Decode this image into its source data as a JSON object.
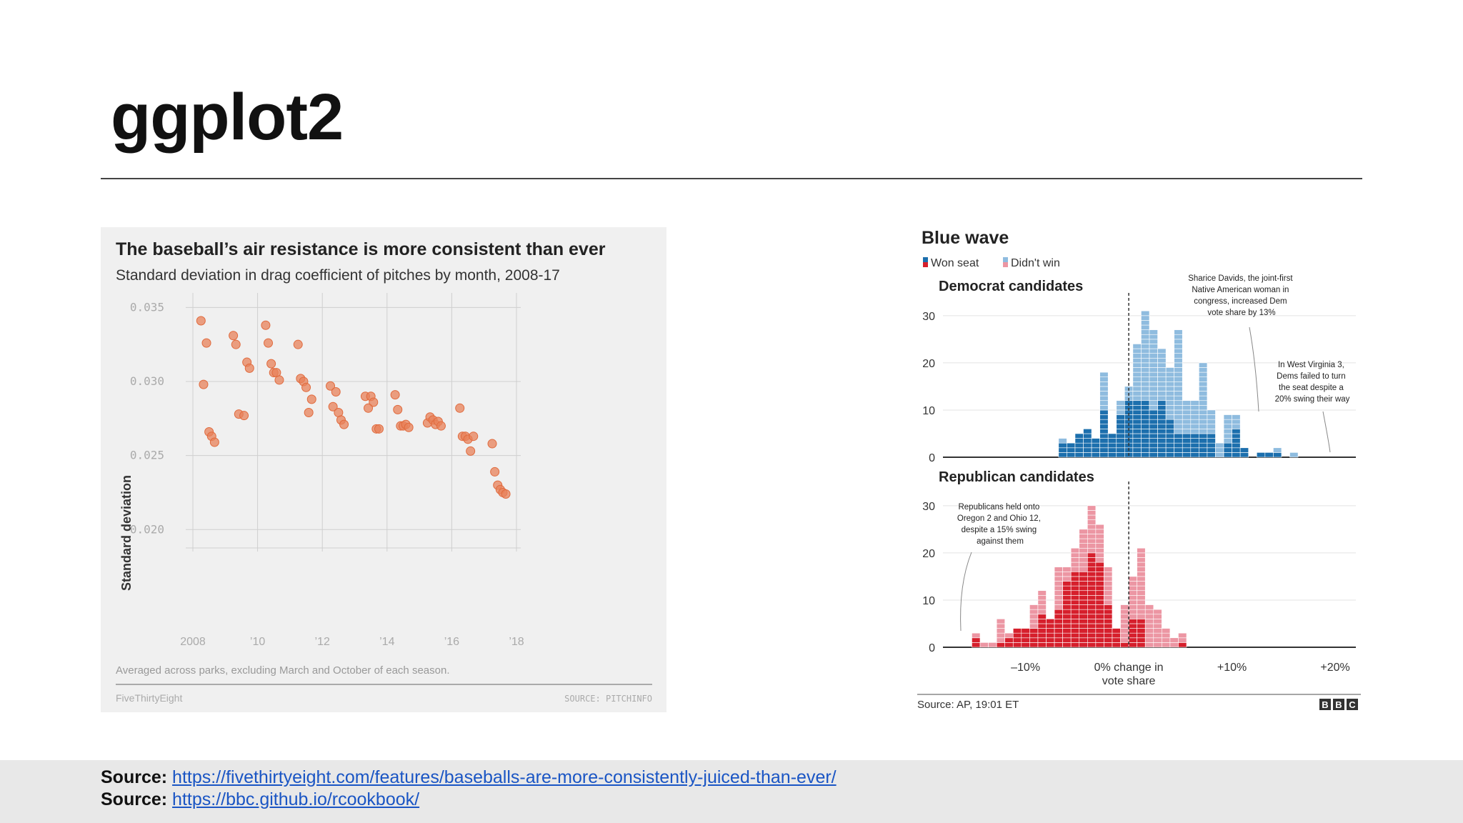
{
  "slide": {
    "title": "ggplot2"
  },
  "footer": {
    "sources": [
      {
        "label": "Source:",
        "url": "https://fivethirtyeight.com/features/baseballs-are-more-consistently-juiced-than-ever/"
      },
      {
        "label": "Source:",
        "url": "https://bbc.github.io/rcookbook/"
      }
    ]
  },
  "colors": {
    "scatter_point": "#e8825a",
    "dem_won": "#1c6fad",
    "dem_lost": "#8fbcdf",
    "rep_won": "#d61f2c",
    "rep_lost": "#ec96a3",
    "fte_bg": "#f0f0f0"
  },
  "chart_data": [
    {
      "type": "scatter",
      "title": "The baseball’s air resistance is more consistent than ever",
      "subtitle": "Standard deviation in drag coefficient of pitches by month, 2008-17",
      "xlabel": "",
      "ylabel": "Standard deviation",
      "xlim": [
        2008,
        2018
      ],
      "ylim": [
        0.019,
        0.0355
      ],
      "x_ticks": [
        2008,
        2010,
        2012,
        2014,
        2016,
        2018
      ],
      "x_tick_labels": [
        "2008",
        "’10",
        "’12",
        "’14",
        "’16",
        "’18"
      ],
      "y_ticks": [
        0.02,
        0.025,
        0.03,
        0.035
      ],
      "y_tick_labels": [
        "0.020",
        "0.025",
        "0.030",
        "0.035"
      ],
      "grid": true,
      "note": "Averaged across parks, excluding March and October of each season.",
      "brand": "FiveThirtyEight",
      "source": "SOURCE: PITCHINFO",
      "points": [
        [
          2008.25,
          0.0341
        ],
        [
          2008.42,
          0.0326
        ],
        [
          2008.33,
          0.0298
        ],
        [
          2008.5,
          0.0266
        ],
        [
          2008.58,
          0.0263
        ],
        [
          2008.67,
          0.0259
        ],
        [
          2009.25,
          0.0331
        ],
        [
          2009.33,
          0.0325
        ],
        [
          2009.42,
          0.0278
        ],
        [
          2009.58,
          0.0277
        ],
        [
          2009.67,
          0.0313
        ],
        [
          2009.75,
          0.0309
        ],
        [
          2010.25,
          0.0338
        ],
        [
          2010.33,
          0.0326
        ],
        [
          2010.42,
          0.0312
        ],
        [
          2010.5,
          0.0306
        ],
        [
          2010.58,
          0.0306
        ],
        [
          2010.67,
          0.0301
        ],
        [
          2011.25,
          0.0325
        ],
        [
          2011.33,
          0.0302
        ],
        [
          2011.42,
          0.03
        ],
        [
          2011.5,
          0.0296
        ],
        [
          2011.58,
          0.0279
        ],
        [
          2011.67,
          0.0288
        ],
        [
          2012.25,
          0.0297
        ],
        [
          2012.42,
          0.0293
        ],
        [
          2012.33,
          0.0283
        ],
        [
          2012.5,
          0.0279
        ],
        [
          2012.58,
          0.0274
        ],
        [
          2012.67,
          0.0271
        ],
        [
          2013.33,
          0.029
        ],
        [
          2013.5,
          0.029
        ],
        [
          2013.58,
          0.0286
        ],
        [
          2013.42,
          0.0282
        ],
        [
          2013.67,
          0.0268
        ],
        [
          2013.75,
          0.0268
        ],
        [
          2014.25,
          0.0291
        ],
        [
          2014.33,
          0.0281
        ],
        [
          2014.42,
          0.027
        ],
        [
          2014.5,
          0.027
        ],
        [
          2014.58,
          0.0271
        ],
        [
          2014.67,
          0.0269
        ],
        [
          2015.25,
          0.0272
        ],
        [
          2015.33,
          0.0276
        ],
        [
          2015.42,
          0.0274
        ],
        [
          2015.5,
          0.0271
        ],
        [
          2015.58,
          0.0273
        ],
        [
          2015.67,
          0.027
        ],
        [
          2016.25,
          0.0282
        ],
        [
          2016.33,
          0.0263
        ],
        [
          2016.42,
          0.0263
        ],
        [
          2016.5,
          0.0261
        ],
        [
          2016.58,
          0.0253
        ],
        [
          2016.67,
          0.0263
        ],
        [
          2017.25,
          0.0258
        ],
        [
          2017.33,
          0.0239
        ],
        [
          2017.42,
          0.023
        ],
        [
          2017.5,
          0.0227
        ],
        [
          2017.58,
          0.0225
        ],
        [
          2017.67,
          0.0224
        ]
      ]
    },
    {
      "type": "bar",
      "title": "Blue wave",
      "legend": [
        "Won seat",
        "Didn't win"
      ],
      "x_tick_labels": [
        "–10%",
        "0% change in vote share",
        "+10%",
        "+20%"
      ],
      "x_ticks": [
        -10,
        0,
        10,
        20
      ],
      "xlim": [
        -18,
        22
      ],
      "bin_width": 0.8,
      "source": "Source: AP, 19:01 ET",
      "brand": [
        "B",
        "B",
        "C"
      ],
      "panels": [
        {
          "subtitle": "Democrat candidates",
          "ylim": [
            0,
            33
          ],
          "y_ticks": [
            0,
            10,
            20,
            30
          ],
          "bins": [
            {
              "x": -6.8,
              "won": 3,
              "lost": 1
            },
            {
              "x": -6.0,
              "won": 3,
              "lost": 0
            },
            {
              "x": -5.2,
              "won": 5,
              "lost": 0
            },
            {
              "x": -4.4,
              "won": 6,
              "lost": 0
            },
            {
              "x": -3.6,
              "won": 4,
              "lost": 0
            },
            {
              "x": -2.8,
              "won": 10,
              "lost": 8
            },
            {
              "x": -2.0,
              "won": 5,
              "lost": 0
            },
            {
              "x": -1.2,
              "won": 9,
              "lost": 3
            },
            {
              "x": -0.4,
              "won": 12,
              "lost": 3
            },
            {
              "x": 0.4,
              "won": 12,
              "lost": 12
            },
            {
              "x": 1.2,
              "won": 12,
              "lost": 19
            },
            {
              "x": 2.0,
              "won": 10,
              "lost": 17
            },
            {
              "x": 2.8,
              "won": 12,
              "lost": 11
            },
            {
              "x": 3.6,
              "won": 8,
              "lost": 11
            },
            {
              "x": 4.4,
              "won": 5,
              "lost": 22
            },
            {
              "x": 5.2,
              "won": 5,
              "lost": 7
            },
            {
              "x": 6.0,
              "won": 5,
              "lost": 7
            },
            {
              "x": 6.8,
              "won": 5,
              "lost": 15
            },
            {
              "x": 7.6,
              "won": 5,
              "lost": 5
            },
            {
              "x": 8.4,
              "won": 0,
              "lost": 3
            },
            {
              "x": 9.2,
              "won": 3,
              "lost": 6
            },
            {
              "x": 10.0,
              "won": 6,
              "lost": 3
            },
            {
              "x": 10.8,
              "won": 2,
              "lost": 0
            },
            {
              "x": 12.4,
              "won": 1,
              "lost": 0
            },
            {
              "x": 13.2,
              "won": 1,
              "lost": 0
            },
            {
              "x": 14.0,
              "won": 1,
              "lost": 1
            },
            {
              "x": 15.6,
              "won": 0,
              "lost": 1
            }
          ],
          "annotations": [
            "Sharice Davids, the joint-first Native American woman in congress, increased Dem vote share by 13%",
            "In West Virginia 3, Dems failed to turn the seat despite a 20% swing their way"
          ]
        },
        {
          "subtitle": "Republican candidates",
          "ylim": [
            0,
            33
          ],
          "y_ticks": [
            0,
            10,
            20,
            30
          ],
          "bins": [
            {
              "x": -15.2,
              "won": 2,
              "lost": 1
            },
            {
              "x": -14.4,
              "won": 0,
              "lost": 1
            },
            {
              "x": -13.6,
              "won": 0,
              "lost": 1
            },
            {
              "x": -12.8,
              "won": 1,
              "lost": 5
            },
            {
              "x": -12.0,
              "won": 2,
              "lost": 1
            },
            {
              "x": -11.2,
              "won": 4,
              "lost": 0
            },
            {
              "x": -10.4,
              "won": 4,
              "lost": 0
            },
            {
              "x": -9.6,
              "won": 4,
              "lost": 5
            },
            {
              "x": -8.8,
              "won": 7,
              "lost": 5
            },
            {
              "x": -8.0,
              "won": 6,
              "lost": 0
            },
            {
              "x": -7.2,
              "won": 8,
              "lost": 9
            },
            {
              "x": -6.4,
              "won": 14,
              "lost": 3
            },
            {
              "x": -5.6,
              "won": 16,
              "lost": 5
            },
            {
              "x": -4.8,
              "won": 16,
              "lost": 9
            },
            {
              "x": -4.0,
              "won": 20,
              "lost": 10
            },
            {
              "x": -3.2,
              "won": 18,
              "lost": 8
            },
            {
              "x": -2.4,
              "won": 9,
              "lost": 8
            },
            {
              "x": -1.6,
              "won": 4,
              "lost": 0
            },
            {
              "x": -0.8,
              "won": 1,
              "lost": 8
            },
            {
              "x": 0.0,
              "won": 6,
              "lost": 9
            },
            {
              "x": 0.8,
              "won": 6,
              "lost": 15
            },
            {
              "x": 1.6,
              "won": 0,
              "lost": 9
            },
            {
              "x": 2.4,
              "won": 0,
              "lost": 8
            },
            {
              "x": 3.2,
              "won": 0,
              "lost": 4
            },
            {
              "x": 4.0,
              "won": 0,
              "lost": 2
            },
            {
              "x": 4.8,
              "won": 1,
              "lost": 2
            }
          ],
          "annotations": [
            "Republicans held onto Oregon 2 and Ohio 12, despite a 15% swing against them"
          ]
        }
      ]
    }
  ]
}
